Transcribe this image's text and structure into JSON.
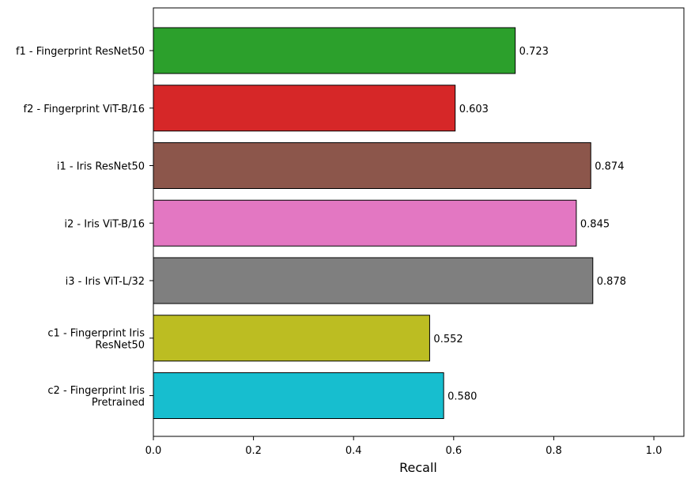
{
  "chart_data": {
    "type": "bar",
    "orientation": "horizontal",
    "categories": [
      [
        "f1 - Fingerprint ResNet50"
      ],
      [
        "f2 - Fingerprint ViT-B/16"
      ],
      [
        "i1 - Iris ResNet50"
      ],
      [
        "i2 - Iris ViT-B/16"
      ],
      [
        "i3 - Iris ViT-L/32"
      ],
      [
        "c1 - Fingerprint Iris",
        "ResNet50"
      ],
      [
        "c2 - Fingerprint Iris",
        "Pretrained"
      ]
    ],
    "values": [
      0.723,
      0.603,
      0.874,
      0.845,
      0.878,
      0.552,
      0.58
    ],
    "data_labels": [
      "0.723",
      "0.603",
      "0.874",
      "0.845",
      "0.878",
      "0.552",
      "0.580"
    ],
    "colors": [
      "#2ca02c",
      "#d62728",
      "#8c564b",
      "#e377c2",
      "#7f7f7f",
      "#bcbd22",
      "#17becf"
    ],
    "xlabel": "Recall",
    "ylabel": "",
    "title": "",
    "xlim": [
      0,
      1.06
    ],
    "xticks": [
      0.0,
      0.2,
      0.4,
      0.6,
      0.8,
      1.0
    ],
    "xtick_labels": [
      "0.0",
      "0.2",
      "0.4",
      "0.6",
      "0.8",
      "1.0"
    ],
    "grid": false,
    "legend": "none"
  }
}
